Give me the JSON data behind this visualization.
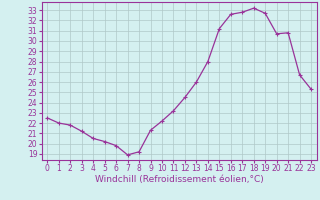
{
  "x": [
    0,
    1,
    2,
    3,
    4,
    5,
    6,
    7,
    8,
    9,
    10,
    11,
    12,
    13,
    14,
    15,
    16,
    17,
    18,
    19,
    20,
    21,
    22,
    23
  ],
  "y": [
    22.5,
    22.0,
    21.8,
    21.2,
    20.5,
    20.2,
    19.8,
    18.9,
    19.2,
    21.3,
    22.2,
    23.2,
    24.5,
    26.0,
    28.0,
    31.2,
    32.6,
    32.8,
    33.2,
    32.7,
    30.7,
    30.8,
    26.7,
    25.3
  ],
  "line_color": "#993399",
  "marker": "+",
  "markersize": 3,
  "linewidth": 0.9,
  "bg_color": "#d4f0f0",
  "grid_color": "#b0c8c8",
  "xlabel": "Windchill (Refroidissement éolien,°C)",
  "xlabel_fontsize": 6.5,
  "xticks": [
    0,
    1,
    2,
    3,
    4,
    5,
    6,
    7,
    8,
    9,
    10,
    11,
    12,
    13,
    14,
    15,
    16,
    17,
    18,
    19,
    20,
    21,
    22,
    23
  ],
  "yticks": [
    19,
    20,
    21,
    22,
    23,
    24,
    25,
    26,
    27,
    28,
    29,
    30,
    31,
    32,
    33
  ],
  "ylim": [
    18.4,
    33.8
  ],
  "xlim": [
    -0.5,
    23.5
  ],
  "tick_fontsize": 5.5,
  "tick_color": "#993399",
  "axis_color": "#993399"
}
